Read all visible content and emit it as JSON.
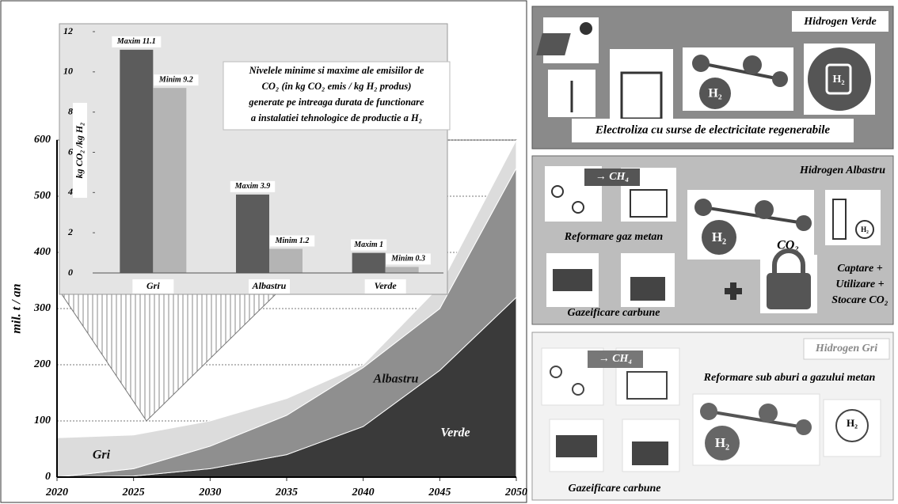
{
  "chart_data": [
    {
      "type": "area",
      "stacked": true,
      "x": [
        2020,
        2025,
        2030,
        2035,
        2040,
        2045,
        2050
      ],
      "series": [
        {
          "name": "Verde",
          "color": "#3a3a3a",
          "values": [
            0,
            2,
            15,
            40,
            90,
            190,
            320
          ]
        },
        {
          "name": "Albastru",
          "color": "#8f8f8f",
          "values": [
            0,
            13,
            40,
            70,
            105,
            110,
            230
          ]
        },
        {
          "name": "Gri",
          "color": "#dcdcdc",
          "values": [
            70,
            60,
            45,
            30,
            5,
            40,
            50
          ]
        }
      ],
      "ylabel": "mil. t / an",
      "xlim": [
        2020,
        2050
      ],
      "ylim": [
        0,
        600
      ],
      "xticks": [
        2020,
        2025,
        2030,
        2035,
        2040,
        2045,
        2050
      ],
      "yticks": [
        0,
        100,
        200,
        300,
        400,
        500,
        600
      ],
      "grid": true
    },
    {
      "type": "bar",
      "annotation": [
        "Nivelele minime si maxime ale emisiilor de",
        "CO₂ (in kg CO₂  emis / kg H₂ produs)",
        "generate pe intreaga durata de functionare",
        "a instalatiei tehnologice de productie a H₂"
      ],
      "ylabel": "kg CO₂ /kg H₂",
      "categories": [
        "Gri",
        "Albastru",
        "Verde"
      ],
      "series": [
        {
          "color": "#5c5c5c",
          "values": [
            11.1,
            3.9,
            1
          ],
          "value_labels": [
            "Maxim 11.1",
            "Maxim 3.9",
            "Maxim 1"
          ]
        },
        {
          "color": "#b4b4b4",
          "values": [
            9.2,
            1.2,
            0.3
          ],
          "value_labels": [
            "Minim 9.2",
            "Minim 1.2",
            "Minim 0.3"
          ]
        }
      ],
      "ylim": [
        0,
        12
      ],
      "yticks": [
        0,
        2,
        4,
        6,
        8,
        10,
        12
      ],
      "grid": false
    }
  ],
  "panels": [
    {
      "title": "Hidrogen Verde",
      "caption": "Electroliza cu surse de electricitate regenerabile",
      "icon_labels": [
        "H₂",
        "H₂"
      ]
    },
    {
      "title": "Hidrogen Albastru",
      "process_labels": [
        "→ CH₄",
        "Reformare gaz metan",
        "Gazeificare carbune"
      ],
      "icon_labels": [
        "H₂",
        "CO₂",
        "H₂"
      ],
      "caption": [
        "Captare +",
        "Utilizare +",
        "Stocare CO₂"
      ]
    },
    {
      "title": "Hidrogen Gri",
      "process_labels": [
        "→ CH₄",
        "Reformare sub aburi a gazului metan",
        "Gazeificare carbune"
      ],
      "icon_labels": [
        "H₂",
        "H₂"
      ]
    }
  ]
}
